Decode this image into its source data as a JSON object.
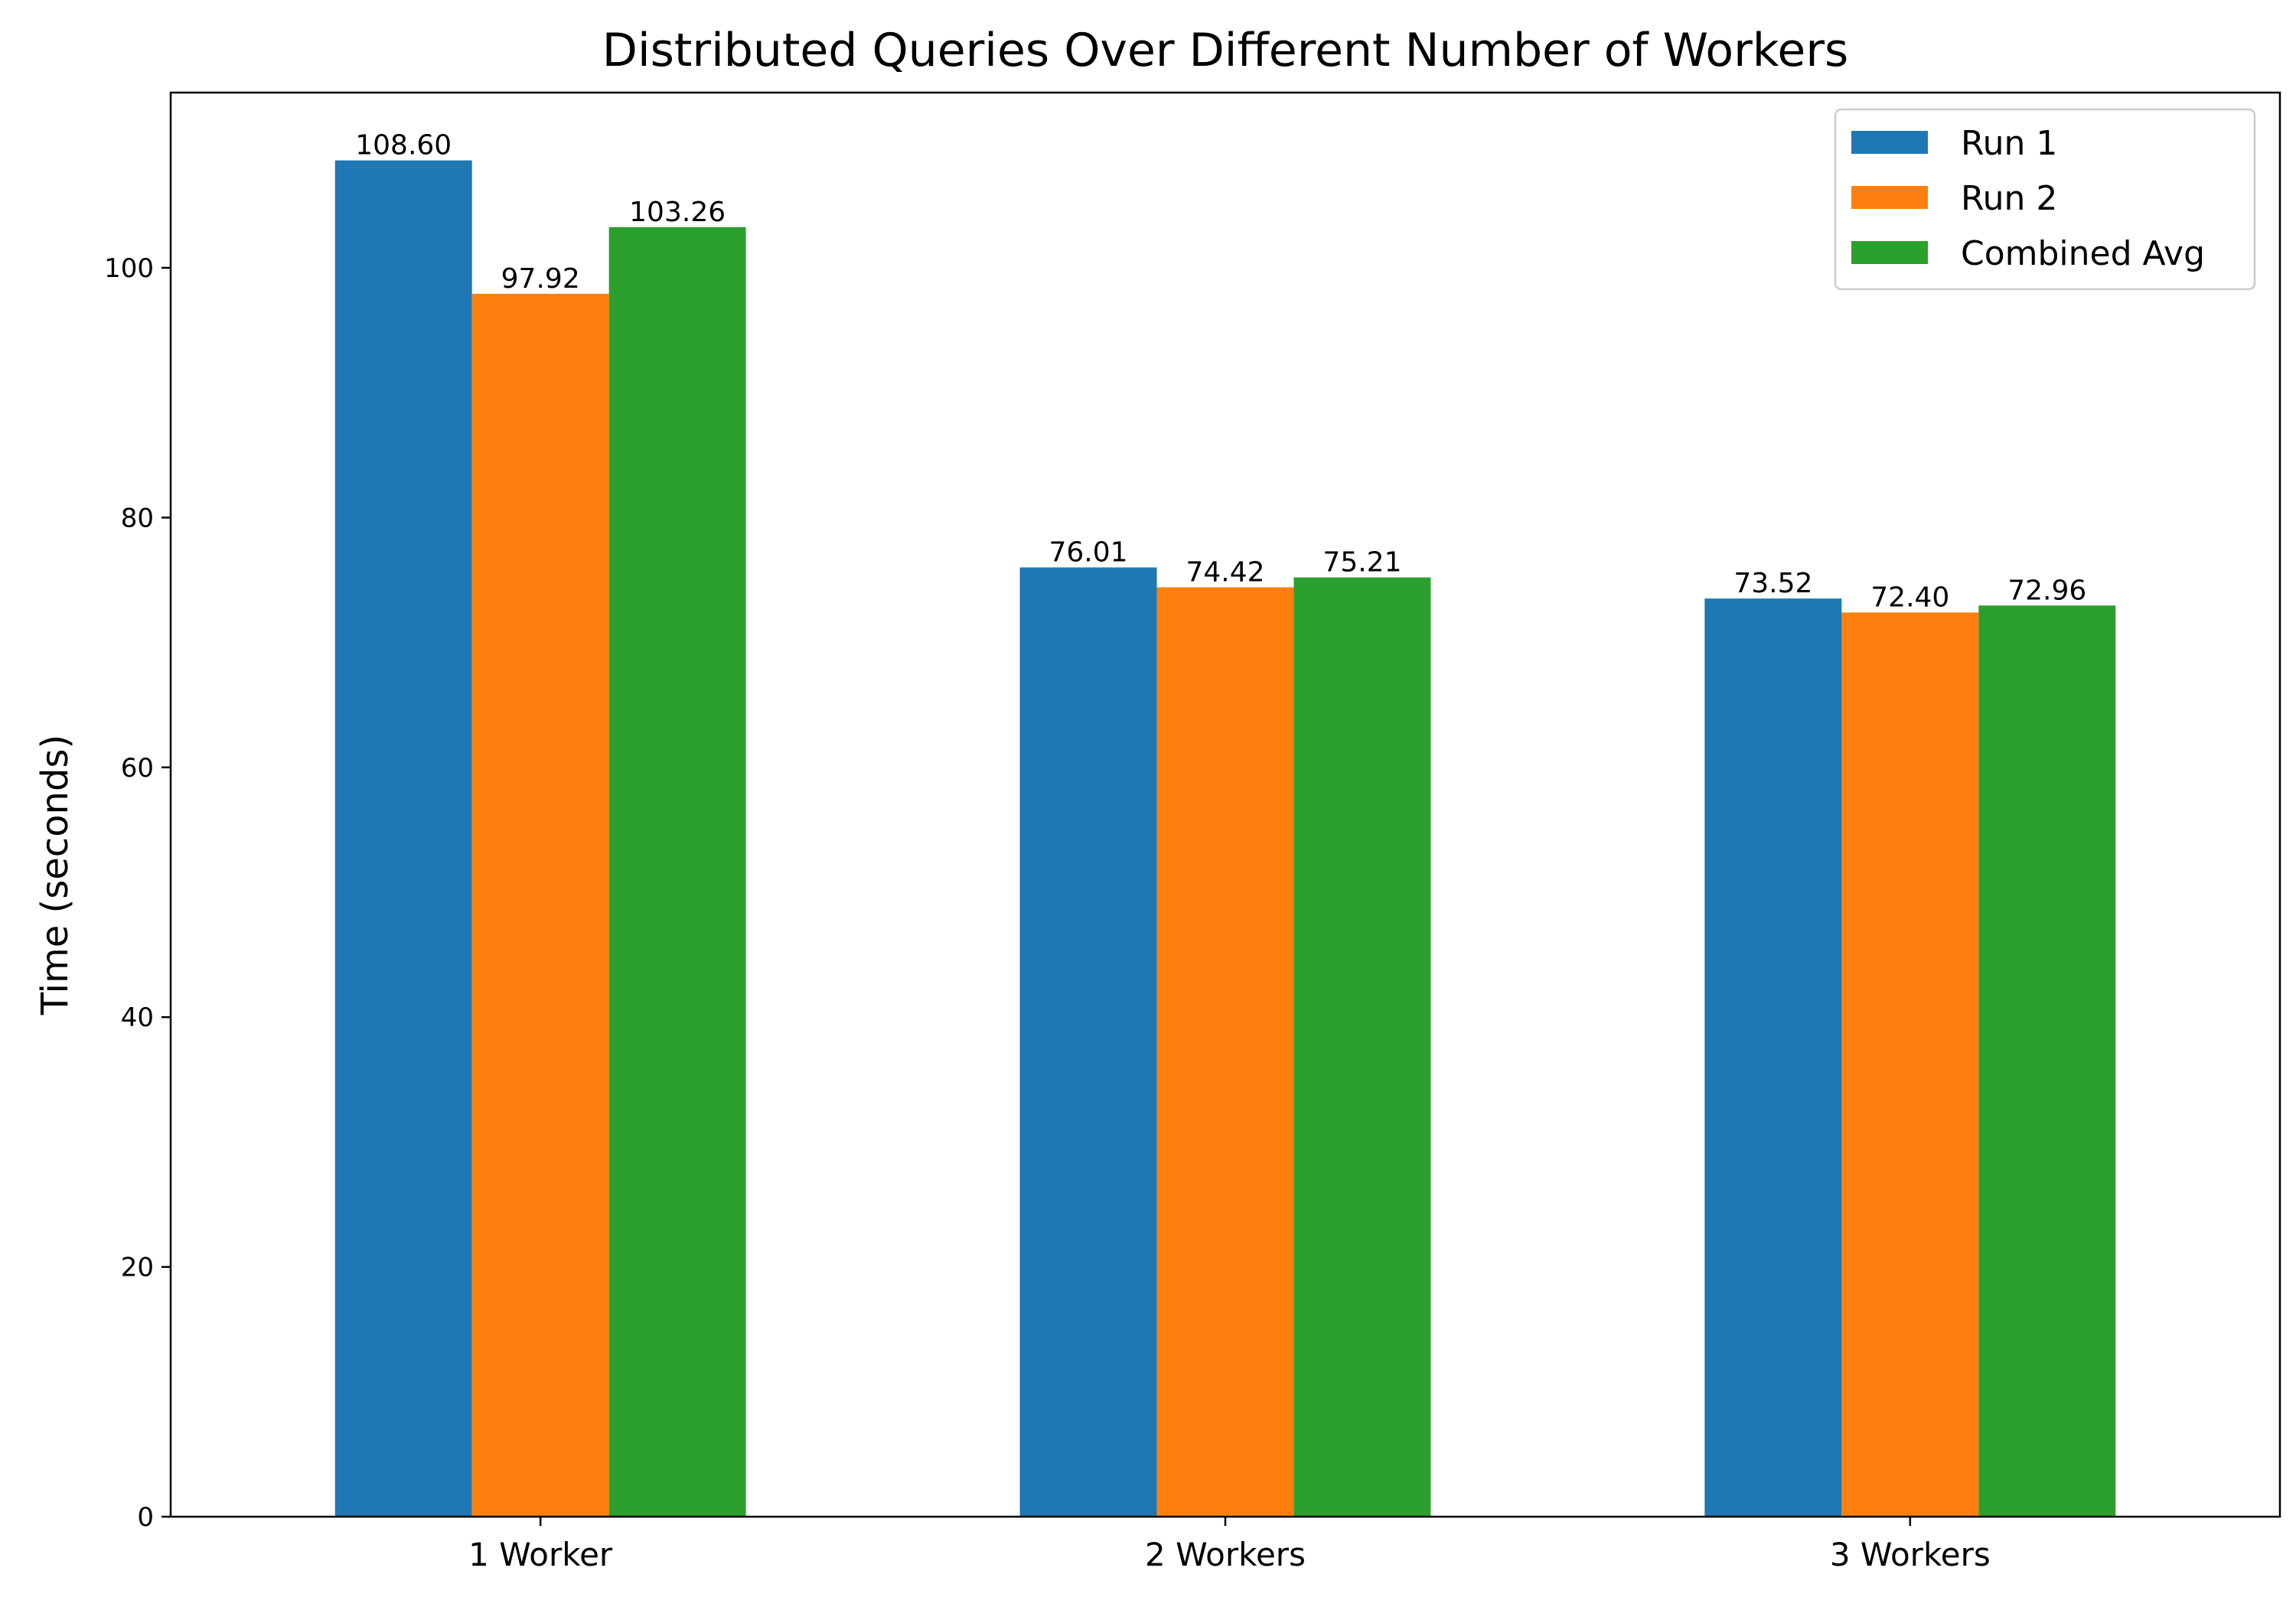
{
  "chart_data": {
    "type": "bar",
    "title": "Distributed Queries Over Different Number of Workers",
    "xlabel": "",
    "ylabel": "Time (seconds)",
    "categories": [
      "1 Worker",
      "2 Workers",
      "3 Workers"
    ],
    "series": [
      {
        "name": "Run 1",
        "color": "#1f77b4",
        "values": [
          108.6,
          76.01,
          73.52
        ]
      },
      {
        "name": "Run 2",
        "color": "#ff7f0e",
        "values": [
          97.92,
          74.42,
          72.4
        ]
      },
      {
        "name": "Combined Avg",
        "color": "#2ca02c",
        "values": [
          103.26,
          75.21,
          72.96
        ]
      }
    ],
    "data_labels": [
      [
        "108.60",
        "76.01",
        "73.52"
      ],
      [
        "97.92",
        "74.42",
        "72.40"
      ],
      [
        "103.26",
        "75.21",
        "72.96"
      ]
    ],
    "yticks": [
      0,
      20,
      40,
      60,
      80,
      100
    ],
    "ytick_labels": [
      "0",
      "20",
      "40",
      "60",
      "80",
      "100"
    ],
    "ylim": [
      0,
      114.03
    ],
    "grid": false,
    "legend_position": "top-right"
  }
}
